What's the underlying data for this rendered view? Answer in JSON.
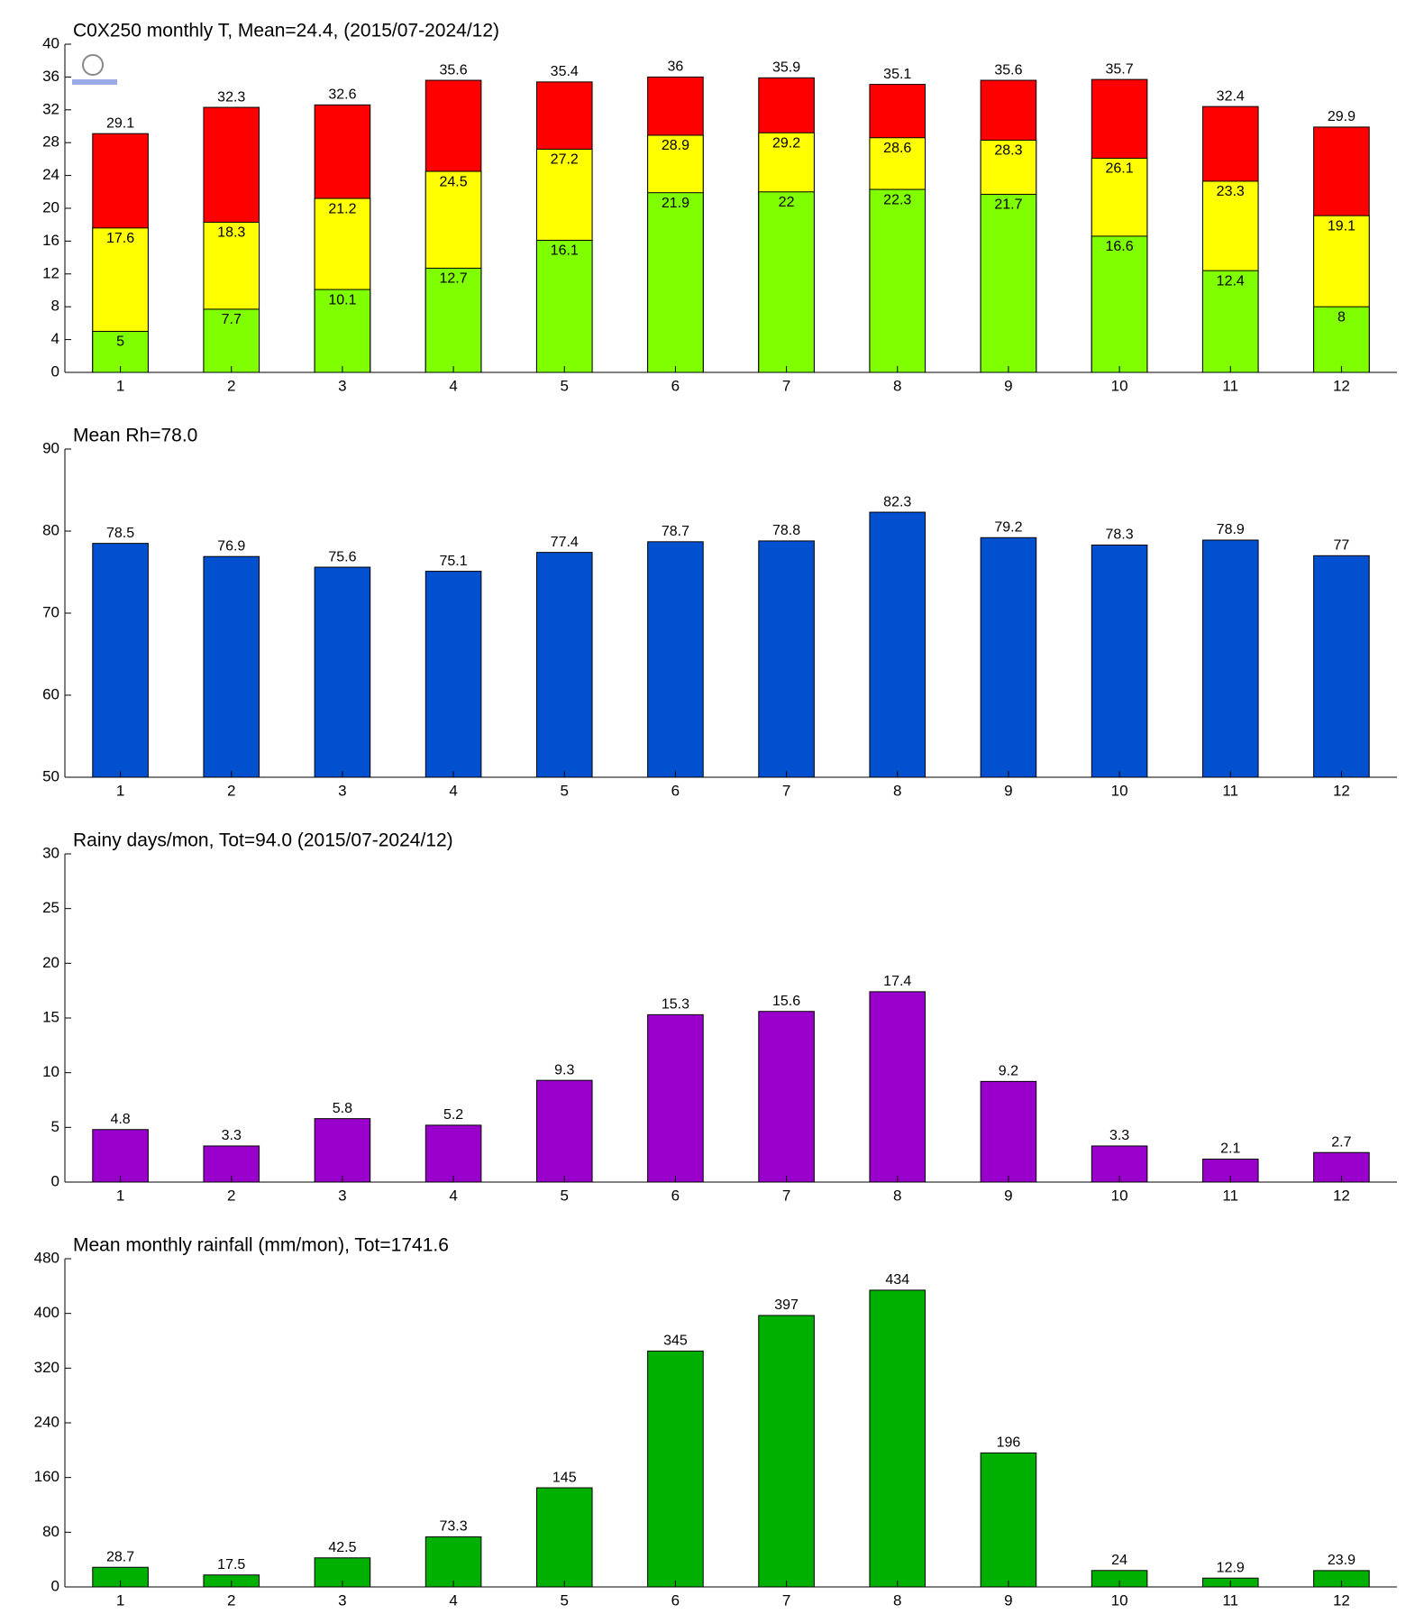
{
  "chart_data": [
    {
      "type": "bar",
      "barmode": "overlay",
      "title": "C0X250 monthly T, Mean=24.4, (2015/07-2024/12)",
      "categories": [
        "1",
        "2",
        "3",
        "4",
        "5",
        "6",
        "7",
        "8",
        "9",
        "10",
        "11",
        "12"
      ],
      "series": [
        {
          "color": "#ff0000",
          "values": [
            29.1,
            32.3,
            32.6,
            35.6,
            35.4,
            36,
            35.9,
            35.1,
            35.6,
            35.7,
            32.4,
            29.9
          ]
        },
        {
          "color": "#ffff00",
          "values": [
            17.6,
            18.3,
            21.2,
            24.5,
            27.2,
            28.9,
            29.2,
            28.6,
            28.3,
            26.1,
            23.3,
            19.1
          ]
        },
        {
          "color": "#80ff00",
          "values": [
            5,
            7.7,
            10.1,
            12.7,
            16.1,
            21.9,
            22,
            22.3,
            21.7,
            16.6,
            12.4,
            8
          ]
        }
      ],
      "ylim": [
        0,
        40
      ],
      "yticks": [
        0,
        4,
        8,
        12,
        16,
        20,
        24,
        28,
        32,
        36,
        40
      ]
    },
    {
      "type": "bar",
      "title": "Mean Rh=78.0",
      "categories": [
        "1",
        "2",
        "3",
        "4",
        "5",
        "6",
        "7",
        "8",
        "9",
        "10",
        "11",
        "12"
      ],
      "series": [
        {
          "color": "#0050d0",
          "values": [
            78.5,
            76.9,
            75.6,
            75.1,
            77.4,
            78.7,
            78.8,
            82.3,
            79.2,
            78.3,
            78.9,
            77
          ]
        }
      ],
      "ylim": [
        50,
        90
      ],
      "yticks": [
        50,
        60,
        70,
        80,
        90
      ]
    },
    {
      "type": "bar",
      "title": "Rainy days/mon, Tot=94.0 (2015/07-2024/12)",
      "categories": [
        "1",
        "2",
        "3",
        "4",
        "5",
        "6",
        "7",
        "8",
        "9",
        "10",
        "11",
        "12"
      ],
      "series": [
        {
          "color": "#9900cc",
          "values": [
            4.8,
            3.3,
            5.8,
            5.2,
            9.3,
            15.3,
            15.6,
            17.4,
            9.2,
            3.3,
            2.1,
            2.7
          ]
        }
      ],
      "ylim": [
        0,
        30
      ],
      "yticks": [
        0,
        5,
        10,
        15,
        20,
        25,
        30
      ]
    },
    {
      "type": "bar",
      "title": "Mean monthly rainfall (mm/mon), Tot=1741.6",
      "categories": [
        "1",
        "2",
        "3",
        "4",
        "5",
        "6",
        "7",
        "8",
        "9",
        "10",
        "11",
        "12"
      ],
      "series": [
        {
          "color": "#00b000",
          "values": [
            28.7,
            17.5,
            42.5,
            73.3,
            145,
            345,
            397,
            434,
            196,
            24,
            12.9,
            23.9
          ]
        }
      ],
      "ylim": [
        0,
        480
      ],
      "yticks": [
        0,
        80,
        160,
        240,
        320,
        400,
        480
      ]
    }
  ]
}
